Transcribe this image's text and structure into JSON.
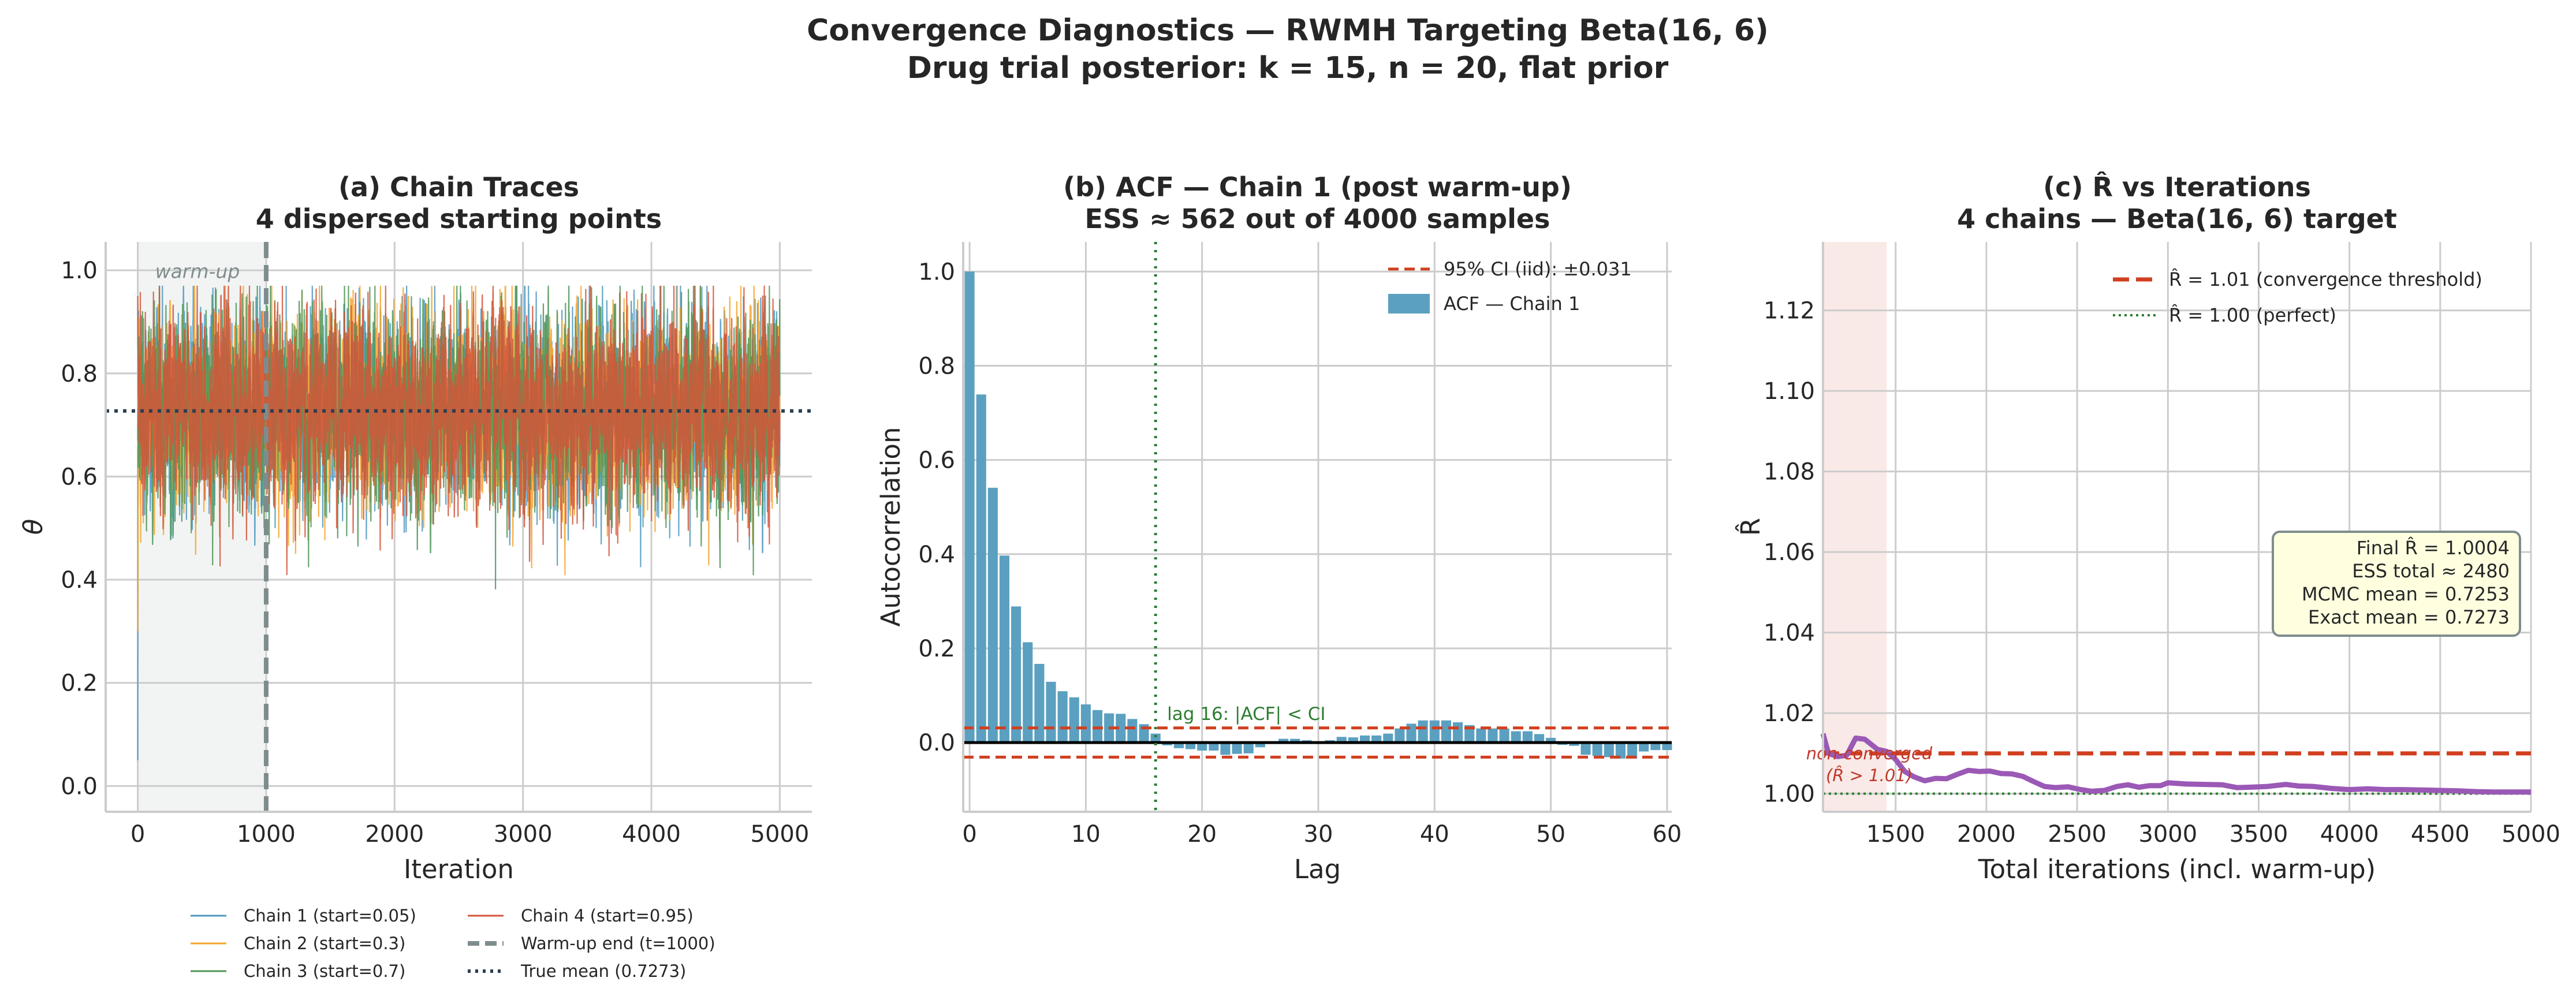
{
  "figure": {
    "title_line1": "Convergence Diagnostics — RWMH Targeting Beta(16, 6)",
    "title_line2": "Drug trial posterior: k = 15,  n = 20, flat prior"
  },
  "chart_data": [
    {
      "type": "line",
      "title_line1": "(a)  Chain Traces",
      "title_line2": "4 dispersed starting points",
      "xlabel": "Iteration",
      "ylabel": "θ",
      "xlim": [
        -250,
        5250
      ],
      "ylim": [
        -0.05,
        1.055
      ],
      "xticks": [
        0,
        1000,
        2000,
        3000,
        4000,
        5000
      ],
      "xtick_labels": [
        "0",
        "1000",
        "2000",
        "3000",
        "4000",
        "5000"
      ],
      "yticks": [
        0.0,
        0.2,
        0.4,
        0.6,
        0.8,
        1.0
      ],
      "ytick_labels": [
        "0.0",
        "0.2",
        "0.4",
        "0.6",
        "0.8",
        "1.0"
      ],
      "grid": true,
      "n_iterations": 5000,
      "warmup_end": 1000,
      "warmup_label": "warm-up",
      "true_mean": 0.7273,
      "stationary_sd": 0.09,
      "autocorrelation": 0.6,
      "series": [
        {
          "name": "Chain 1 (start=0.05)",
          "start": 0.05,
          "color": "#4C98C0",
          "seed": 11
        },
        {
          "name": "Chain 2 (start=0.3)",
          "start": 0.3,
          "color": "#F4A42C",
          "seed": 23
        },
        {
          "name": "Chain 3 (start=0.7)",
          "start": 0.7,
          "color": "#4E9558",
          "seed": 37
        },
        {
          "name": "Chain 4 (start=0.95)",
          "start": 0.95,
          "color": "#D2553A",
          "seed": 53
        }
      ],
      "legend": {
        "position": "bottom-center",
        "warmup_entry": "Warm-up end (t=1000)",
        "truemean_entry": "True mean (0.7273)",
        "warmup_color": "#7F8C8D",
        "truemean_color": "#2C3E50"
      }
    },
    {
      "type": "bar",
      "title_line1": "(b)  ACF — Chain 1 (post warm-up)",
      "title_line2": "ESS ≈ 562  out of 4000 samples",
      "xlabel": "Lag",
      "ylabel": "Autocorrelation",
      "xlim": [
        -0.55,
        60.4
      ],
      "ylim": [
        -0.147,
        1.063
      ],
      "xticks": [
        0,
        10,
        20,
        30,
        40,
        50,
        60
      ],
      "xtick_labels": [
        "0",
        "10",
        "20",
        "30",
        "40",
        "50",
        "60"
      ],
      "yticks": [
        0.0,
        0.2,
        0.4,
        0.6,
        0.8,
        1.0
      ],
      "ytick_labels": [
        "0.0",
        "0.2",
        "0.4",
        "0.6",
        "0.8",
        "1.0"
      ],
      "grid": true,
      "lags": [
        0,
        1,
        2,
        3,
        4,
        5,
        6,
        7,
        8,
        9,
        10,
        11,
        12,
        13,
        14,
        15,
        16,
        17,
        18,
        19,
        20,
        21,
        22,
        23,
        24,
        25,
        26,
        27,
        28,
        29,
        30,
        31,
        32,
        33,
        34,
        35,
        36,
        37,
        38,
        39,
        40,
        41,
        42,
        43,
        44,
        45,
        46,
        47,
        48,
        49,
        50,
        51,
        52,
        53,
        54,
        55,
        56,
        57,
        58,
        59,
        60
      ],
      "values": [
        1.0,
        0.739,
        0.541,
        0.397,
        0.289,
        0.213,
        0.167,
        0.129,
        0.109,
        0.096,
        0.081,
        0.069,
        0.062,
        0.061,
        0.05,
        0.039,
        0.019,
        -0.006,
        -0.012,
        -0.014,
        -0.017,
        -0.017,
        -0.026,
        -0.024,
        -0.023,
        -0.01,
        -0.001,
        0.008,
        0.008,
        0.005,
        0.002,
        0.005,
        0.012,
        0.011,
        0.015,
        0.015,
        0.019,
        0.03,
        0.04,
        0.047,
        0.047,
        0.047,
        0.043,
        0.037,
        0.03,
        0.03,
        0.03,
        0.024,
        0.024,
        0.018,
        0.01,
        -0.005,
        -0.007,
        -0.026,
        -0.028,
        -0.031,
        -0.034,
        -0.034,
        -0.019,
        -0.016,
        -0.016
      ],
      "ci": 0.031,
      "cutoff_lag": 16,
      "cutoff_label": "lag 16: |ACF| < CI",
      "bar_color": "#5BA0C0",
      "ci_color": "#D13F1F",
      "cutoff_color": "#2E7D32",
      "legend": {
        "position": "top-right",
        "ci_entry": "95% CI (iid): ±0.031",
        "bar_entry": "ACF — Chain 1"
      }
    },
    {
      "type": "line",
      "title_line1": "(c)  R̂ vs Iterations",
      "title_line2": "4 chains — Beta(16, 6) target",
      "xlabel": "Total iterations (incl. warm-up)",
      "ylabel": "R̂",
      "xlim": [
        1100,
        5000
      ],
      "ylim": [
        0.9955,
        1.137
      ],
      "xticks": [
        1500,
        2000,
        2500,
        3000,
        3500,
        4000,
        4500,
        5000
      ],
      "xtick_labels": [
        "1500",
        "2000",
        "2500",
        "3000",
        "3500",
        "4000",
        "4500",
        "5000"
      ],
      "yticks": [
        1.0,
        1.02,
        1.04,
        1.06,
        1.08,
        1.1,
        1.12
      ],
      "ytick_labels": [
        "1.00",
        "1.02",
        "1.04",
        "1.06",
        "1.08",
        "1.10",
        "1.12"
      ],
      "grid": true,
      "x": [
        1100,
        1130,
        1180,
        1230,
        1280,
        1330,
        1400,
        1450,
        1500,
        1550,
        1600,
        1660,
        1720,
        1780,
        1840,
        1900,
        1960,
        2020,
        2080,
        2140,
        2200,
        2260,
        2320,
        2380,
        2450,
        2520,
        2580,
        2650,
        2720,
        2780,
        2840,
        2900,
        2960,
        3000,
        3100,
        3200,
        3300,
        3380,
        3450,
        3550,
        3650,
        3720,
        3800,
        3900,
        4000,
        4100,
        4200,
        4300,
        4400,
        4500,
        4600,
        4700,
        4800,
        4900,
        5000
      ],
      "y": [
        1.0149,
        1.01,
        1.0092,
        1.0095,
        1.0138,
        1.0135,
        1.011,
        1.0105,
        1.0085,
        1.0055,
        1.0042,
        1.0032,
        1.0038,
        1.0037,
        1.0048,
        1.0058,
        1.0055,
        1.0056,
        1.005,
        1.0049,
        1.0043,
        1.003,
        1.0018,
        1.0015,
        1.0017,
        1.001,
        1.0006,
        1.0008,
        1.0018,
        1.0022,
        1.0016,
        1.002,
        1.002,
        1.0027,
        1.0024,
        1.0023,
        1.0022,
        1.0015,
        1.0016,
        1.0018,
        1.0023,
        1.0019,
        1.0018,
        1.0013,
        1.001,
        1.0012,
        1.001,
        1.001,
        1.0009,
        1.0008,
        1.0007,
        1.0005,
        1.0004,
        1.0004,
        1.0004
      ],
      "line_color": "#9B59B6",
      "threshold": 1.01,
      "perfect": 1.0,
      "nonconverged_until": 1450,
      "nonconverged_label_1": "non-converged",
      "nonconverged_label_2": "(R̂ > 1.01)",
      "legend": {
        "position": "top-right",
        "threshold_entry": "R̂ = 1.01 (convergence threshold)",
        "perfect_entry": "R̂ = 1.00 (perfect)"
      },
      "stats_box": [
        "Final R̂ = 1.0004",
        "ESS total ≈ 2480",
        "MCMC mean = 0.7253",
        "Exact mean = 0.7273"
      ]
    }
  ]
}
